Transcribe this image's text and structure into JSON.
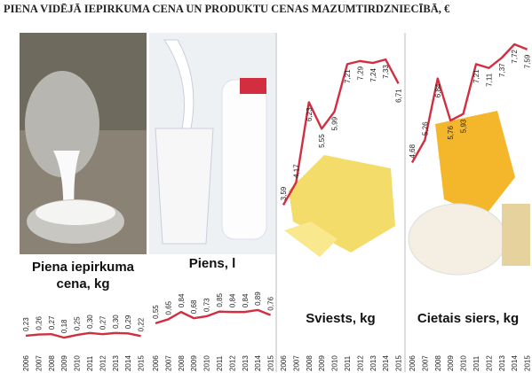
{
  "title": "PIENA VIDĒJĀ IEPIRKUMA CENA UN PRODUKTU CENAS MAZUMTIRDZNIECĪBĀ, €",
  "chart_data": [
    {
      "type": "line",
      "title": "Piena iepirkuma cena, kg",
      "color": "#d22e3f",
      "categories": [
        "2006",
        "2007",
        "2008",
        "2009",
        "2010",
        "2011",
        "2012",
        "2013",
        "2014",
        "2015"
      ],
      "values": [
        0.23,
        0.26,
        0.27,
        0.18,
        0.25,
        0.3,
        0.27,
        0.3,
        0.29,
        0.22
      ],
      "value_labels": [
        "0,23",
        "0,26",
        "0,27",
        "0,18",
        "0,25",
        "0,30",
        "0,27",
        "0,30",
        "0,29",
        "0,22"
      ]
    },
    {
      "type": "line",
      "title": "Piens, l",
      "color": "#d22e3f",
      "categories": [
        "2006",
        "2007",
        "2008",
        "2009",
        "2010",
        "2011",
        "2012",
        "2013",
        "2014",
        "2015"
      ],
      "values": [
        0.55,
        0.65,
        0.84,
        0.68,
        0.73,
        0.85,
        0.84,
        0.84,
        0.89,
        0.76
      ],
      "value_labels": [
        "0,55",
        "0,65",
        "0,84",
        "0,68",
        "0,73",
        "0,85",
        "0,84",
        "0,84",
        "0,89",
        "0,76"
      ]
    },
    {
      "type": "line",
      "title": "Sviests, kg",
      "color": "#d22e3f",
      "categories": [
        "2006",
        "2007",
        "2008",
        "2009",
        "2010",
        "2011",
        "2012",
        "2013",
        "2014",
        "2015"
      ],
      "values": [
        3.59,
        4.17,
        6.23,
        5.55,
        5.99,
        7.21,
        7.29,
        7.24,
        7.33,
        6.71
      ],
      "value_labels": [
        "3,59",
        "4,17",
        "6,23",
        "5,55",
        "5,99",
        "7,21",
        "7,29",
        "7,24",
        "7,33",
        "6,71"
      ]
    },
    {
      "type": "line",
      "title": "Cietais siers, kg",
      "color": "#d22e3f",
      "categories": [
        "2006",
        "2007",
        "2008",
        "2009",
        "2010",
        "2011",
        "2012",
        "2013",
        "2014",
        "2015"
      ],
      "values": [
        4.68,
        5.26,
        6.84,
        5.76,
        5.93,
        7.21,
        7.11,
        7.37,
        7.72,
        7.59
      ],
      "value_labels": [
        "4,68",
        "5,26",
        "6,84",
        "5,76",
        "5,93",
        "7,21",
        "7,11",
        "7,37",
        "7,72",
        "7,59"
      ]
    }
  ]
}
